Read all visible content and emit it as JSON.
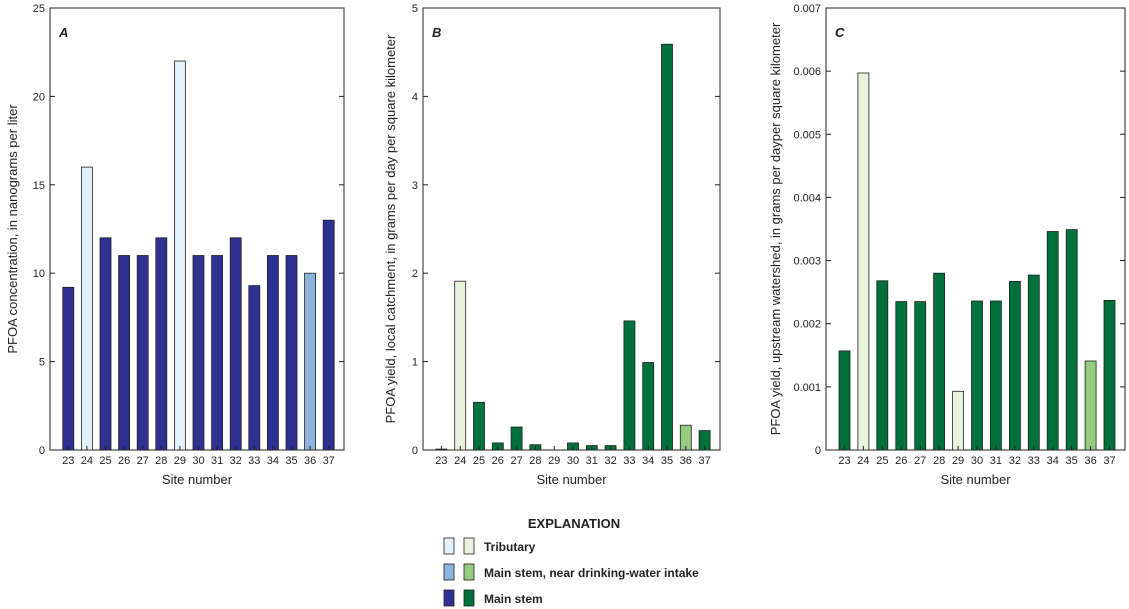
{
  "chart_data": [
    {
      "type": "bar",
      "panel": "A",
      "categories": [
        "23",
        "24",
        "25",
        "26",
        "27",
        "28",
        "29",
        "30",
        "31",
        "32",
        "33",
        "34",
        "35",
        "36",
        "37"
      ],
      "values": [
        9.2,
        16,
        12,
        11,
        11,
        12,
        22,
        11,
        11,
        12,
        9.3,
        11,
        11,
        10,
        13
      ],
      "groups": [
        "main",
        "trib",
        "main",
        "main",
        "main",
        "main",
        "trib",
        "main",
        "main",
        "main",
        "main",
        "main",
        "main",
        "intake",
        "main"
      ],
      "ylim": [
        0,
        25
      ],
      "yticks": [
        "0",
        "5",
        "10",
        "15",
        "20",
        "25"
      ],
      "xlabel": "Site number",
      "ylabel": "PFOA concentration, in nanograms per liter",
      "colors": {
        "trib": "#e4f1fa",
        "intake": "#8cb4df",
        "main": "#2e3192"
      }
    },
    {
      "type": "bar",
      "panel": "B",
      "categories": [
        "23",
        "24",
        "25",
        "26",
        "27",
        "28",
        "29",
        "30",
        "31",
        "32",
        "33",
        "34",
        "35",
        "36",
        "37"
      ],
      "values": [
        0.01,
        1.91,
        0.54,
        0.08,
        0.26,
        0.06,
        0,
        0.08,
        0.05,
        0.05,
        1.46,
        0.99,
        4.59,
        0.28,
        0.22
      ],
      "groups": [
        "main",
        "trib",
        "main",
        "main",
        "main",
        "main",
        "trib",
        "main",
        "main",
        "main",
        "main",
        "main",
        "main",
        "intake",
        "main"
      ],
      "ylim": [
        0,
        5
      ],
      "yticks": [
        "0",
        "1",
        "2",
        "3",
        "4",
        "5"
      ],
      "xlabel": "Site number",
      "ylabel": "PFOA yield, local catchment, in grams per day per square kilometer",
      "colors": {
        "trib": "#e8f3dd",
        "intake": "#95cc82",
        "main": "#00703c"
      }
    },
    {
      "type": "bar",
      "panel": "C",
      "categories": [
        "23",
        "24",
        "25",
        "26",
        "27",
        "28",
        "29",
        "30",
        "31",
        "32",
        "33",
        "34",
        "35",
        "36",
        "37"
      ],
      "values": [
        0.00157,
        0.00597,
        0.00268,
        0.00235,
        0.00235,
        0.0028,
        0.00093,
        0.00236,
        0.00236,
        0.00267,
        0.00277,
        0.00346,
        0.00349,
        0.00141,
        0.00237
      ],
      "groups": [
        "main",
        "trib",
        "main",
        "main",
        "main",
        "main",
        "trib",
        "main",
        "main",
        "main",
        "main",
        "main",
        "main",
        "intake",
        "main"
      ],
      "ylim": [
        0,
        0.007
      ],
      "yticks": [
        "0",
        "0.001",
        "0.002",
        "0.003",
        "0.004",
        "0.005",
        "0.006",
        "0.007"
      ],
      "xlabel": "Site number",
      "ylabel": "PFOA yield, upstream watershed, in grams per dayper square kilometer",
      "colors": {
        "trib": "#e8f3dd",
        "intake": "#95cc82",
        "main": "#00703c"
      }
    }
  ],
  "legend": {
    "title": "EXPLANATION",
    "items": [
      {
        "label": "Tributary",
        "swatches": [
          "#e4f1fa",
          "#e8f3dd"
        ]
      },
      {
        "label": "Main stem, near drinking-water intake",
        "swatches": [
          "#8cb4df",
          "#95cc82"
        ]
      },
      {
        "label": "Main stem",
        "swatches": [
          "#2e3192",
          "#00703c"
        ]
      }
    ]
  }
}
